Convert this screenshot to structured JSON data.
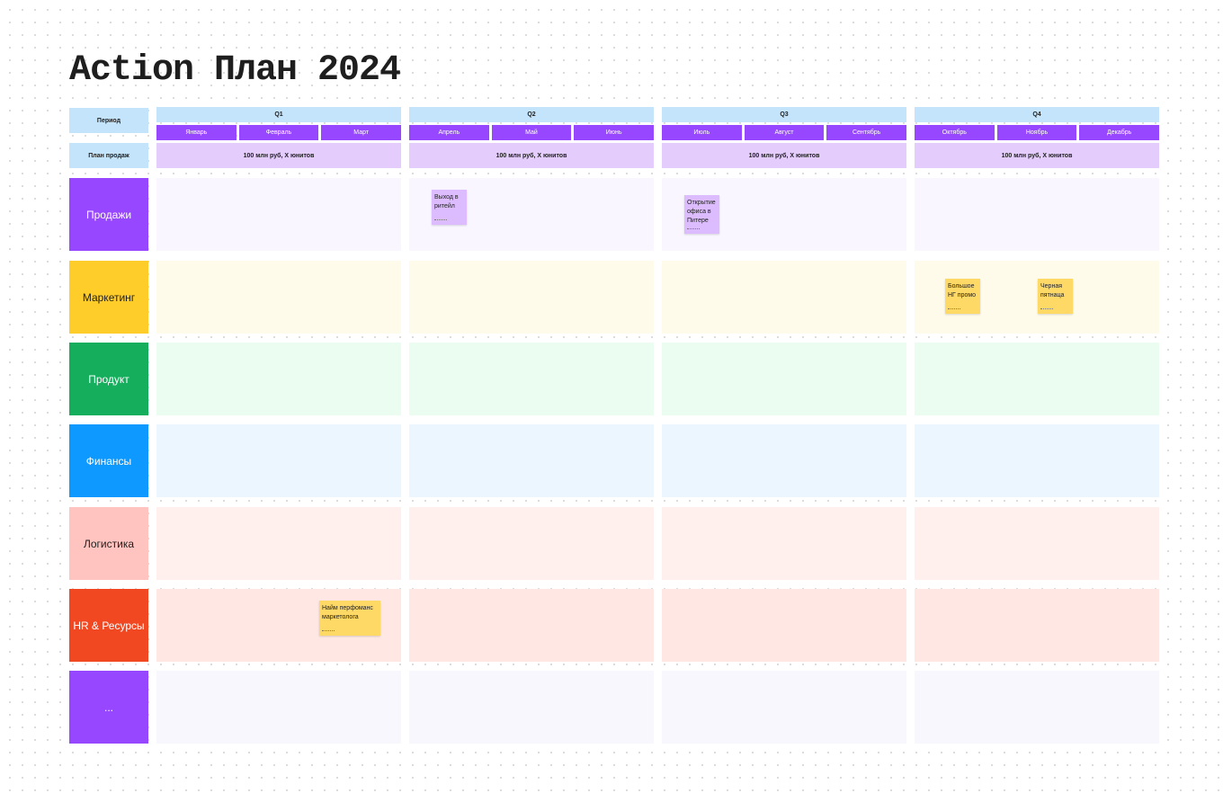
{
  "title": "Action План 2024",
  "header": {
    "period_label": "Период",
    "plan_label": "План продаж",
    "quarters": [
      {
        "name": "Q1",
        "months": [
          "Январь",
          "Февраль",
          "Март"
        ],
        "plan": "100 млн руб, X юнитов"
      },
      {
        "name": "Q2",
        "months": [
          "Апрель",
          "Май",
          "Июнь"
        ],
        "plan": "100 млн руб, X юнитов"
      },
      {
        "name": "Q3",
        "months": [
          "Июль",
          "Август",
          "Сентябрь"
        ],
        "plan": "100 млн руб, X юнитов"
      },
      {
        "name": "Q4",
        "months": [
          "Октябрь",
          "Ноябрь",
          "Декабрь"
        ],
        "plan": "100 млн руб, X юнитов"
      }
    ]
  },
  "rows": [
    {
      "label": "Продажи",
      "stickies": [
        "Выход в ритейл",
        "Открытие офиса в Питере"
      ]
    },
    {
      "label": "Маркетинг",
      "stickies": [
        "Большое НГ промо",
        "Черная пятнаца"
      ]
    },
    {
      "label": "Продукт",
      "stickies": []
    },
    {
      "label": "Финансы",
      "stickies": []
    },
    {
      "label": "Логистика",
      "stickies": []
    },
    {
      "label": "HR & Ресурсы",
      "stickies": [
        "Найм перфоманс маркетолога"
      ]
    },
    {
      "label": "...",
      "stickies": []
    }
  ]
}
